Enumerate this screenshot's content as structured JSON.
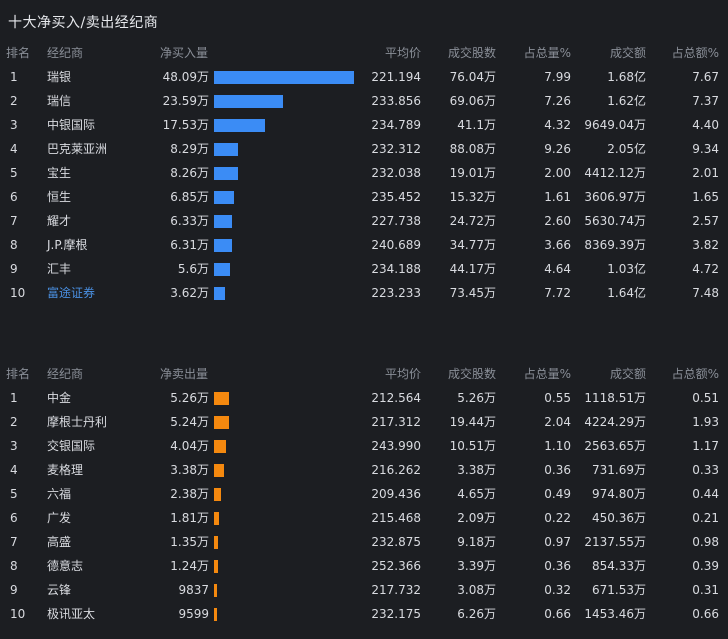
{
  "title": "十大净买入/卖出经纪商",
  "colors": {
    "buy_bar": "#3b8cf5",
    "sell_bar": "#f5890f",
    "link": "#4a90e2",
    "bg": "#1c1e22"
  },
  "buy": {
    "headers": {
      "rank": "排名",
      "broker": "经纪商",
      "net": "净买入量",
      "avg": "平均价",
      "shares": "成交股数",
      "pct_vol": "占总量%",
      "amount": "成交额",
      "pct_amt": "占总额%"
    },
    "rows": [
      {
        "rank": "1",
        "broker": "瑞银",
        "net": "48.09万",
        "level": 1.0,
        "avg": "221.194",
        "shares": "76.04万",
        "pct_vol": "7.99",
        "amount": "1.68亿",
        "pct_amt": "7.67"
      },
      {
        "rank": "2",
        "broker": "瑞信",
        "net": "23.59万",
        "level": 0.4905,
        "avg": "233.856",
        "shares": "69.06万",
        "pct_vol": "7.26",
        "amount": "1.62亿",
        "pct_amt": "7.37"
      },
      {
        "rank": "3",
        "broker": "中银国际",
        "net": "17.53万",
        "level": 0.3645,
        "avg": "234.789",
        "shares": "41.1万",
        "pct_vol": "4.32",
        "amount": "9649.04万",
        "pct_amt": "4.40"
      },
      {
        "rank": "4",
        "broker": "巴克莱亚洲",
        "net": "8.29万",
        "level": 0.1724,
        "avg": "232.312",
        "shares": "88.08万",
        "pct_vol": "9.26",
        "amount": "2.05亿",
        "pct_amt": "9.34"
      },
      {
        "rank": "5",
        "broker": "宝生",
        "net": "8.26万",
        "level": 0.1718,
        "avg": "232.038",
        "shares": "19.01万",
        "pct_vol": "2.00",
        "amount": "4412.12万",
        "pct_amt": "2.01"
      },
      {
        "rank": "6",
        "broker": "恒生",
        "net": "6.85万",
        "level": 0.1424,
        "avg": "235.452",
        "shares": "15.32万",
        "pct_vol": "1.61",
        "amount": "3606.97万",
        "pct_amt": "1.65"
      },
      {
        "rank": "7",
        "broker": "耀才",
        "net": "6.33万",
        "level": 0.1316,
        "avg": "227.738",
        "shares": "24.72万",
        "pct_vol": "2.60",
        "amount": "5630.74万",
        "pct_amt": "2.57"
      },
      {
        "rank": "8",
        "broker": "J.P.摩根",
        "net": "6.31万",
        "level": 0.1312,
        "avg": "240.689",
        "shares": "34.77万",
        "pct_vol": "3.66",
        "amount": "8369.39万",
        "pct_amt": "3.82"
      },
      {
        "rank": "9",
        "broker": "汇丰",
        "net": "5.6万",
        "level": 0.1164,
        "avg": "234.188",
        "shares": "44.17万",
        "pct_vol": "4.64",
        "amount": "1.03亿",
        "pct_amt": "4.72"
      },
      {
        "rank": "10",
        "broker": "富途证券",
        "net": "3.62万",
        "level": 0.0753,
        "avg": "223.233",
        "shares": "73.45万",
        "pct_vol": "7.72",
        "amount": "1.64亿",
        "pct_amt": "7.48",
        "link": true
      }
    ]
  },
  "sell": {
    "headers": {
      "rank": "排名",
      "broker": "经纪商",
      "net": "净卖出量",
      "avg": "平均价",
      "shares": "成交股数",
      "pct_vol": "占总量%",
      "amount": "成交额",
      "pct_amt": "占总额%"
    },
    "rows": [
      {
        "rank": "1",
        "broker": "中金",
        "net": "5.26万",
        "level": 0.1094,
        "avg": "212.564",
        "shares": "5.26万",
        "pct_vol": "0.55",
        "amount": "1118.51万",
        "pct_amt": "0.51"
      },
      {
        "rank": "2",
        "broker": "摩根士丹利",
        "net": "5.24万",
        "level": 0.109,
        "avg": "217.312",
        "shares": "19.44万",
        "pct_vol": "2.04",
        "amount": "4224.29万",
        "pct_amt": "1.93"
      },
      {
        "rank": "3",
        "broker": "交银国际",
        "net": "4.04万",
        "level": 0.084,
        "avg": "243.990",
        "shares": "10.51万",
        "pct_vol": "1.10",
        "amount": "2563.65万",
        "pct_amt": "1.17"
      },
      {
        "rank": "4",
        "broker": "麦格理",
        "net": "3.38万",
        "level": 0.0703,
        "avg": "216.262",
        "shares": "3.38万",
        "pct_vol": "0.36",
        "amount": "731.69万",
        "pct_amt": "0.33"
      },
      {
        "rank": "5",
        "broker": "六福",
        "net": "2.38万",
        "level": 0.0495,
        "avg": "209.436",
        "shares": "4.65万",
        "pct_vol": "0.49",
        "amount": "974.80万",
        "pct_amt": "0.44"
      },
      {
        "rank": "6",
        "broker": "广发",
        "net": "1.81万",
        "level": 0.0376,
        "avg": "215.468",
        "shares": "2.09万",
        "pct_vol": "0.22",
        "amount": "450.36万",
        "pct_amt": "0.21"
      },
      {
        "rank": "7",
        "broker": "高盛",
        "net": "1.35万",
        "level": 0.0281,
        "avg": "232.875",
        "shares": "9.18万",
        "pct_vol": "0.97",
        "amount": "2137.55万",
        "pct_amt": "0.98"
      },
      {
        "rank": "8",
        "broker": "德意志",
        "net": "1.24万",
        "level": 0.0258,
        "avg": "252.366",
        "shares": "3.39万",
        "pct_vol": "0.36",
        "amount": "854.33万",
        "pct_amt": "0.39"
      },
      {
        "rank": "9",
        "broker": "云锋",
        "net": "9837",
        "level": 0.0205,
        "avg": "217.732",
        "shares": "3.08万",
        "pct_vol": "0.32",
        "amount": "671.53万",
        "pct_amt": "0.31"
      },
      {
        "rank": "10",
        "broker": "极讯亚太",
        "net": "9599",
        "level": 0.02,
        "avg": "232.175",
        "shares": "6.26万",
        "pct_vol": "0.66",
        "amount": "1453.46万",
        "pct_amt": "0.66"
      }
    ]
  }
}
